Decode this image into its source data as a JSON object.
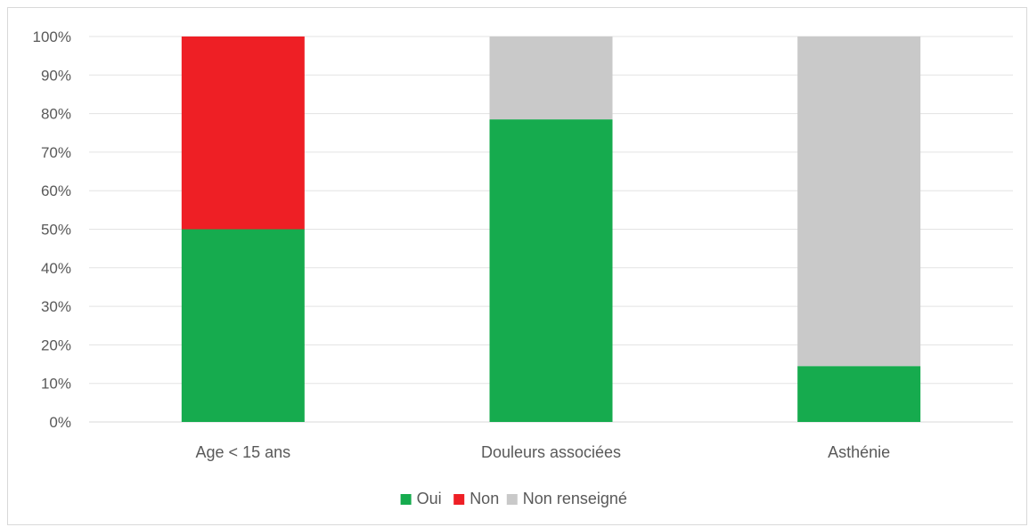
{
  "chart_data": {
    "type": "bar",
    "stacked": true,
    "categories": [
      "Age < 15 ans",
      "Douleurs associées",
      "Asthénie"
    ],
    "series": [
      {
        "name": "Oui",
        "color": "#16ab4e",
        "values": [
          50,
          78.5,
          14.5
        ]
      },
      {
        "name": "Non",
        "color": "#ee1f25",
        "values": [
          50,
          0,
          0
        ]
      },
      {
        "name": "Non renseigné",
        "color": "#c9c9c9",
        "values": [
          0,
          21.5,
          85.5
        ]
      }
    ],
    "y_ticks": [
      "0%",
      "10%",
      "20%",
      "30%",
      "40%",
      "50%",
      "60%",
      "70%",
      "80%",
      "90%",
      "100%"
    ],
    "ylim": [
      0,
      100
    ],
    "y_unit": "%",
    "grid": true,
    "legend_position": "bottom",
    "title": "",
    "xlabel": "",
    "ylabel": ""
  }
}
